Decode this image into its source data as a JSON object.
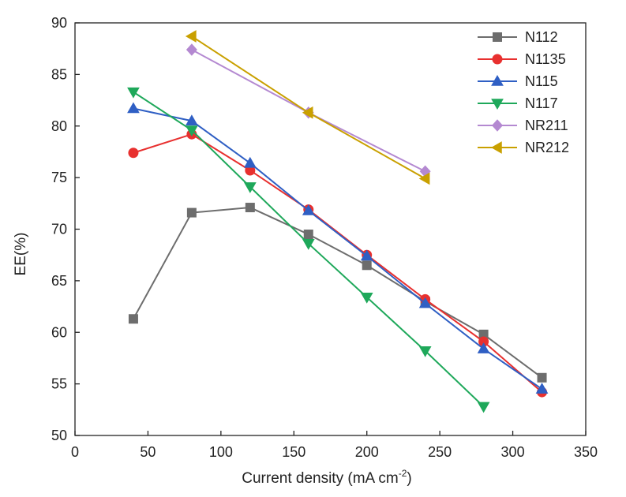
{
  "chart_data": {
    "type": "line",
    "title": "",
    "xlabel": "Current density (mA cm",
    "xlabel_sup": "-2",
    "xlabel_close": ")",
    "ylabel": "EE(%)",
    "xlim": [
      0,
      350
    ],
    "ylim": [
      50,
      90
    ],
    "x_ticks": [
      "0",
      "50",
      "100",
      "150",
      "200",
      "250",
      "300",
      "350"
    ],
    "y_ticks": [
      "50",
      "55",
      "60",
      "65",
      "70",
      "75",
      "80",
      "85",
      "90"
    ],
    "grid": false,
    "legend_position": "top-right",
    "series": [
      {
        "name": "N112",
        "color": "#6d6d6d",
        "marker": "square",
        "x": [
          40,
          80,
          120,
          160,
          200,
          240,
          280,
          320
        ],
        "y": [
          61.3,
          71.6,
          72.1,
          69.5,
          66.5,
          63.0,
          59.8,
          55.6
        ]
      },
      {
        "name": "N1135",
        "color": "#e8302f",
        "marker": "circle",
        "x": [
          40,
          80,
          120,
          160,
          200,
          240,
          280,
          320
        ],
        "y": [
          77.4,
          79.2,
          75.7,
          71.9,
          67.5,
          63.2,
          59.1,
          54.2
        ]
      },
      {
        "name": "N115",
        "color": "#2f5fc4",
        "marker": "triangle-up",
        "x": [
          40,
          80,
          120,
          160,
          200,
          240,
          280,
          320
        ],
        "y": [
          81.7,
          80.5,
          76.4,
          71.8,
          67.4,
          62.8,
          58.4,
          54.5
        ]
      },
      {
        "name": "N117",
        "color": "#1ea85a",
        "marker": "triangle-down",
        "x": [
          40,
          80,
          120,
          160,
          200,
          240,
          280
        ],
        "y": [
          83.3,
          79.6,
          74.1,
          68.6,
          63.4,
          58.2,
          52.8
        ]
      },
      {
        "name": "NR211",
        "color": "#b489d1",
        "marker": "diamond",
        "x": [
          80,
          160,
          240
        ],
        "y": [
          87.4,
          81.3,
          75.6
        ]
      },
      {
        "name": "NR212",
        "color": "#c9a000",
        "marker": "triangle-left",
        "x": [
          80,
          160,
          240
        ],
        "y": [
          88.7,
          81.3,
          74.9
        ]
      }
    ]
  }
}
